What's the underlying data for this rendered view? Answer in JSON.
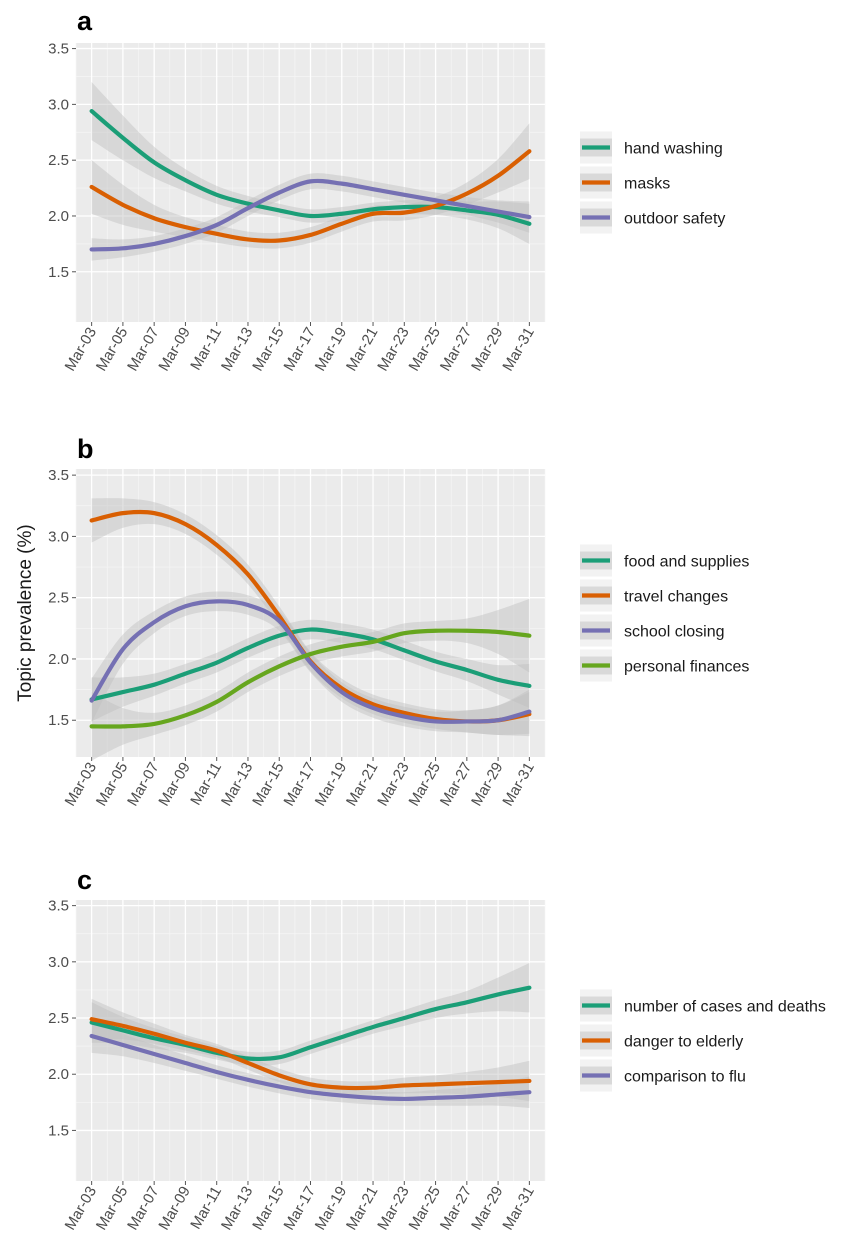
{
  "ylabel": "Topic prevalence (%)",
  "colors": {
    "green": "#1b9e77",
    "orange": "#d95f02",
    "purple": "#7570b3",
    "lightgreen": "#66a61e",
    "panel_bg": "#ebebeb",
    "ribbon": "#bfbfbf"
  },
  "chart_data": [
    {
      "type": "line",
      "panel": "a",
      "x_ticks": [
        "Mar-03",
        "Mar-05",
        "Mar-07",
        "Mar-09",
        "Mar-11",
        "Mar-13",
        "Mar-15",
        "Mar-17",
        "Mar-19",
        "Mar-21",
        "Mar-23",
        "Mar-25",
        "Mar-27",
        "Mar-29",
        "Mar-31"
      ],
      "y_ticks": [
        "1.5",
        "2.0",
        "2.5",
        "3.0",
        "3.5"
      ],
      "ylim": [
        1.05,
        3.55
      ],
      "legend_position": "right",
      "grid": true,
      "x": [
        3,
        5,
        7,
        9,
        11,
        13,
        15,
        17,
        19,
        21,
        23,
        25,
        27,
        29,
        31
      ],
      "series": [
        {
          "name": "hand washing",
          "color": "green",
          "values": [
            2.94,
            2.7,
            2.48,
            2.32,
            2.19,
            2.11,
            2.05,
            2.0,
            2.02,
            2.06,
            2.08,
            2.08,
            2.05,
            2.01,
            1.93
          ],
          "band": [
            0.26,
            0.2,
            0.14,
            0.1,
            0.08,
            0.07,
            0.06,
            0.06,
            0.06,
            0.06,
            0.06,
            0.07,
            0.08,
            0.12,
            0.18
          ]
        },
        {
          "name": "masks",
          "color": "orange",
          "values": [
            2.26,
            2.1,
            1.98,
            1.9,
            1.84,
            1.79,
            1.78,
            1.83,
            1.93,
            2.02,
            2.03,
            2.09,
            2.2,
            2.36,
            2.58
          ],
          "band": [
            0.24,
            0.18,
            0.12,
            0.09,
            0.08,
            0.07,
            0.07,
            0.07,
            0.07,
            0.07,
            0.07,
            0.08,
            0.1,
            0.15,
            0.25
          ]
        },
        {
          "name": "outdoor safety",
          "color": "purple",
          "values": [
            1.7,
            1.71,
            1.75,
            1.82,
            1.92,
            2.07,
            2.21,
            2.31,
            2.29,
            2.24,
            2.19,
            2.14,
            2.09,
            2.04,
            1.99
          ],
          "band": [
            0.1,
            0.08,
            0.07,
            0.07,
            0.07,
            0.07,
            0.07,
            0.07,
            0.07,
            0.07,
            0.07,
            0.07,
            0.08,
            0.1,
            0.14
          ]
        }
      ]
    },
    {
      "type": "line",
      "panel": "b",
      "x_ticks": [
        "Mar-03",
        "Mar-05",
        "Mar-07",
        "Mar-09",
        "Mar-11",
        "Mar-13",
        "Mar-15",
        "Mar-17",
        "Mar-19",
        "Mar-21",
        "Mar-23",
        "Mar-25",
        "Mar-27",
        "Mar-29",
        "Mar-31"
      ],
      "y_ticks": [
        "1.5",
        "2.0",
        "2.5",
        "3.0",
        "3.5"
      ],
      "ylim": [
        1.2,
        3.55
      ],
      "legend_position": "right",
      "grid": true,
      "x": [
        3,
        5,
        7,
        9,
        11,
        13,
        15,
        17,
        19,
        21,
        23,
        25,
        27,
        29,
        31
      ],
      "series": [
        {
          "name": "food and supplies",
          "color": "green",
          "values": [
            1.67,
            1.73,
            1.79,
            1.88,
            1.97,
            2.09,
            2.19,
            2.24,
            2.21,
            2.16,
            2.07,
            1.98,
            1.91,
            1.83,
            1.78
          ],
          "band": [
            0.18,
            0.12,
            0.09,
            0.08,
            0.08,
            0.08,
            0.08,
            0.08,
            0.08,
            0.08,
            0.08,
            0.08,
            0.09,
            0.12,
            0.18
          ]
        },
        {
          "name": "travel changes",
          "color": "orange",
          "values": [
            3.13,
            3.19,
            3.19,
            3.1,
            2.93,
            2.69,
            2.35,
            1.98,
            1.76,
            1.63,
            1.56,
            1.51,
            1.49,
            1.5,
            1.55
          ],
          "band": [
            0.18,
            0.12,
            0.09,
            0.08,
            0.08,
            0.08,
            0.08,
            0.08,
            0.08,
            0.08,
            0.08,
            0.08,
            0.09,
            0.12,
            0.18
          ]
        },
        {
          "name": "school closing",
          "color": "purple",
          "values": [
            1.66,
            2.08,
            2.3,
            2.43,
            2.47,
            2.44,
            2.31,
            1.97,
            1.73,
            1.6,
            1.53,
            1.49,
            1.49,
            1.5,
            1.57
          ],
          "band": [
            0.18,
            0.12,
            0.09,
            0.08,
            0.08,
            0.08,
            0.08,
            0.08,
            0.08,
            0.08,
            0.08,
            0.08,
            0.09,
            0.12,
            0.18
          ]
        },
        {
          "name": "personal finances",
          "color": "lightgreen",
          "values": [
            1.45,
            1.45,
            1.47,
            1.54,
            1.65,
            1.81,
            1.94,
            2.04,
            2.1,
            2.14,
            2.21,
            2.23,
            2.23,
            2.22,
            2.19
          ],
          "band": [
            0.28,
            0.15,
            0.09,
            0.08,
            0.08,
            0.08,
            0.08,
            0.08,
            0.08,
            0.08,
            0.08,
            0.08,
            0.1,
            0.18,
            0.3
          ]
        }
      ]
    },
    {
      "type": "line",
      "panel": "c",
      "x_ticks": [
        "Mar-03",
        "Mar-05",
        "Mar-07",
        "Mar-09",
        "Mar-11",
        "Mar-13",
        "Mar-15",
        "Mar-17",
        "Mar-19",
        "Mar-21",
        "Mar-23",
        "Mar-25",
        "Mar-27",
        "Mar-29",
        "Mar-31"
      ],
      "y_ticks": [
        "1.5",
        "2.0",
        "2.5",
        "3.0",
        "3.5"
      ],
      "ylim": [
        1.05,
        3.55
      ],
      "legend_position": "right",
      "grid": true,
      "x": [
        3,
        5,
        7,
        9,
        11,
        13,
        15,
        17,
        19,
        21,
        23,
        25,
        27,
        29,
        31
      ],
      "series": [
        {
          "name": "number of cases and deaths",
          "color": "green",
          "values": [
            2.46,
            2.39,
            2.32,
            2.26,
            2.19,
            2.14,
            2.15,
            2.24,
            2.33,
            2.42,
            2.5,
            2.58,
            2.64,
            2.71,
            2.77
          ],
          "band": [
            0.18,
            0.12,
            0.09,
            0.07,
            0.06,
            0.06,
            0.06,
            0.06,
            0.06,
            0.06,
            0.07,
            0.08,
            0.1,
            0.15,
            0.22
          ]
        },
        {
          "name": "danger to elderly",
          "color": "orange",
          "values": [
            2.49,
            2.43,
            2.36,
            2.28,
            2.21,
            2.1,
            1.99,
            1.91,
            1.88,
            1.88,
            1.9,
            1.91,
            1.92,
            1.93,
            1.94
          ],
          "band": [
            0.18,
            0.12,
            0.09,
            0.07,
            0.06,
            0.06,
            0.06,
            0.06,
            0.06,
            0.06,
            0.07,
            0.08,
            0.1,
            0.13,
            0.18
          ]
        },
        {
          "name": "comparison to flu",
          "color": "purple",
          "values": [
            2.34,
            2.26,
            2.18,
            2.1,
            2.02,
            1.95,
            1.89,
            1.84,
            1.81,
            1.79,
            1.78,
            1.79,
            1.8,
            1.82,
            1.84
          ],
          "band": [
            0.15,
            0.1,
            0.08,
            0.07,
            0.06,
            0.06,
            0.06,
            0.06,
            0.06,
            0.06,
            0.06,
            0.07,
            0.08,
            0.1,
            0.14
          ]
        }
      ]
    }
  ]
}
